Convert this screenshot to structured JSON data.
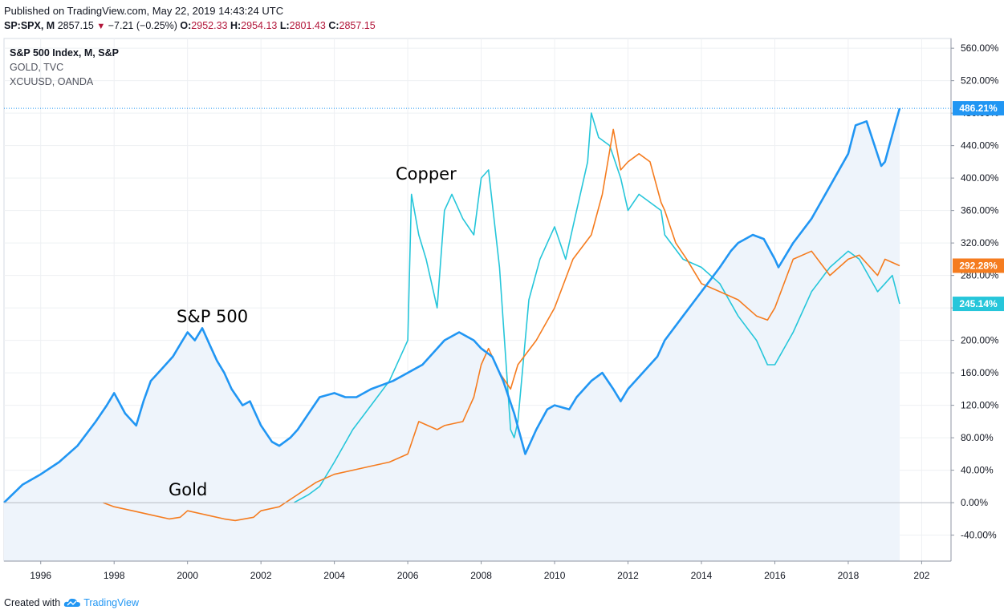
{
  "header": {
    "published": "Published on TradingView.com, May 22, 2019 14:43:24 UTC",
    "symbol": "SP:SPX, M",
    "price": "2857.15",
    "change": "−7.21 (−0.25%)",
    "o_label": "O:",
    "o_val": "2952.33",
    "h_label": "H:",
    "h_val": "2954.13",
    "l_label": "L:",
    "l_val": "2801.43",
    "c_label": "C:",
    "c_val": "2857.15"
  },
  "footer": {
    "created_with": "Created with",
    "brand": "TradingView"
  },
  "colors": {
    "sp500": "#2196f3",
    "gold": "#f57c1f",
    "copper": "#26c6da",
    "fill": "#eef4fb"
  },
  "chart_data": {
    "type": "line",
    "legend": [
      "S&P 500 Index, M, S&P",
      "GOLD, TVC",
      "XCUUSD, OANDA"
    ],
    "annotations": [
      "Copper",
      "S&P 500",
      "Gold"
    ],
    "x_ticks": [
      "1996",
      "1998",
      "2000",
      "2002",
      "2004",
      "2006",
      "2008",
      "2010",
      "2012",
      "2014",
      "2016",
      "2018",
      "202"
    ],
    "y_ticks": [
      "560.00%",
      "520.00%",
      "480.00%",
      "440.00%",
      "400.00%",
      "360.00%",
      "320.00%",
      "280.00%",
      "240.00%",
      "200.00%",
      "160.00%",
      "120.00%",
      "80.00%",
      "40.00%",
      "0.00%",
      "-40.00%"
    ],
    "ylim": [
      -72,
      572
    ],
    "xlim": [
      1995.0,
      2020.8
    ],
    "last_labels": [
      {
        "series": "sp500",
        "text": "486.21%"
      },
      {
        "series": "gold",
        "text": "292.28%"
      },
      {
        "series": "copper",
        "text": "245.14%"
      }
    ],
    "series": [
      {
        "key": "sp500",
        "name": "S&P 500 Index, M, S&P",
        "x": [
          1995.0,
          1995.5,
          1996.0,
          1996.5,
          1997.0,
          1997.5,
          1997.8,
          1998.0,
          1998.3,
          1998.6,
          1998.8,
          1999.0,
          1999.3,
          1999.6,
          1999.8,
          2000.0,
          2000.2,
          2000.4,
          2000.6,
          2000.8,
          2001.0,
          2001.2,
          2001.5,
          2001.7,
          2002.0,
          2002.3,
          2002.5,
          2002.8,
          2003.0,
          2003.3,
          2003.6,
          2004.0,
          2004.3,
          2004.6,
          2005.0,
          2005.3,
          2005.6,
          2006.0,
          2006.4,
          2006.8,
          2007.0,
          2007.4,
          2007.8,
          2008.0,
          2008.3,
          2008.6,
          2008.9,
          2009.2,
          2009.5,
          2009.8,
          2010.0,
          2010.4,
          2010.6,
          2011.0,
          2011.3,
          2011.6,
          2011.8,
          2012.0,
          2012.4,
          2012.8,
          2013.0,
          2013.5,
          2014.0,
          2014.5,
          2014.8,
          2015.0,
          2015.4,
          2015.7,
          2016.0,
          2016.1,
          2016.5,
          2017.0,
          2017.5,
          2018.0,
          2018.2,
          2018.5,
          2018.9,
          2019.0,
          2019.3,
          2019.4
        ],
        "y": [
          0,
          22,
          35,
          50,
          70,
          100,
          120,
          135,
          110,
          95,
          125,
          150,
          165,
          180,
          195,
          210,
          200,
          215,
          195,
          175,
          160,
          140,
          120,
          125,
          95,
          75,
          70,
          80,
          90,
          110,
          130,
          135,
          130,
          130,
          140,
          145,
          150,
          160,
          170,
          190,
          200,
          210,
          200,
          190,
          180,
          150,
          110,
          60,
          90,
          115,
          120,
          115,
          130,
          150,
          160,
          140,
          125,
          140,
          160,
          180,
          200,
          230,
          260,
          290,
          310,
          320,
          330,
          325,
          300,
          290,
          320,
          350,
          390,
          430,
          465,
          470,
          415,
          420,
          470,
          486
        ]
      },
      {
        "key": "gold",
        "name": "GOLD, TVC",
        "x": [
          1997.7,
          1998.0,
          1998.5,
          1999.0,
          1999.5,
          1999.8,
          2000.0,
          2000.5,
          2001.0,
          2001.3,
          2001.8,
          2002.0,
          2002.5,
          2003.0,
          2003.5,
          2004.0,
          2004.5,
          2005.0,
          2005.5,
          2006.0,
          2006.3,
          2006.8,
          2007.0,
          2007.5,
          2007.8,
          2008.0,
          2008.2,
          2008.5,
          2008.8,
          2009.0,
          2009.5,
          2010.0,
          2010.5,
          2011.0,
          2011.3,
          2011.6,
          2011.8,
          2012.0,
          2012.3,
          2012.6,
          2012.9,
          2013.0,
          2013.3,
          2013.6,
          2014.0,
          2014.5,
          2015.0,
          2015.5,
          2015.8,
          2016.0,
          2016.5,
          2017.0,
          2017.5,
          2018.0,
          2018.3,
          2018.8,
          2019.0,
          2019.4
        ],
        "y": [
          0,
          -5,
          -10,
          -15,
          -20,
          -18,
          -10,
          -15,
          -20,
          -22,
          -18,
          -10,
          -5,
          10,
          25,
          35,
          40,
          45,
          50,
          60,
          100,
          90,
          95,
          100,
          130,
          170,
          190,
          160,
          140,
          170,
          200,
          240,
          300,
          330,
          380,
          460,
          410,
          420,
          430,
          420,
          370,
          360,
          320,
          300,
          270,
          260,
          250,
          230,
          225,
          240,
          300,
          310,
          280,
          300,
          305,
          280,
          300,
          292
        ]
      },
      {
        "key": "copper",
        "name": "XCUUSD, OANDA",
        "x": [
          2002.9,
          2003.3,
          2003.6,
          2004.0,
          2004.5,
          2005.0,
          2005.5,
          2006.0,
          2006.1,
          2006.3,
          2006.5,
          2006.8,
          2007.0,
          2007.2,
          2007.5,
          2007.8,
          2008.0,
          2008.2,
          2008.5,
          2008.8,
          2008.9,
          2009.0,
          2009.3,
          2009.6,
          2010.0,
          2010.3,
          2010.6,
          2010.9,
          2011.0,
          2011.2,
          2011.5,
          2011.8,
          2012.0,
          2012.3,
          2012.6,
          2012.9,
          2013.0,
          2013.5,
          2014.0,
          2014.5,
          2015.0,
          2015.5,
          2015.8,
          2016.0,
          2016.5,
          2017.0,
          2017.5,
          2018.0,
          2018.3,
          2018.8,
          2019.0,
          2019.2,
          2019.4
        ],
        "y": [
          0,
          10,
          20,
          50,
          90,
          120,
          150,
          200,
          380,
          330,
          300,
          240,
          360,
          380,
          350,
          330,
          400,
          410,
          290,
          90,
          80,
          100,
          250,
          300,
          340,
          300,
          360,
          420,
          480,
          450,
          440,
          400,
          360,
          380,
          370,
          360,
          330,
          300,
          290,
          270,
          230,
          200,
          170,
          170,
          210,
          260,
          290,
          310,
          300,
          260,
          270,
          280,
          245
        ]
      }
    ]
  }
}
